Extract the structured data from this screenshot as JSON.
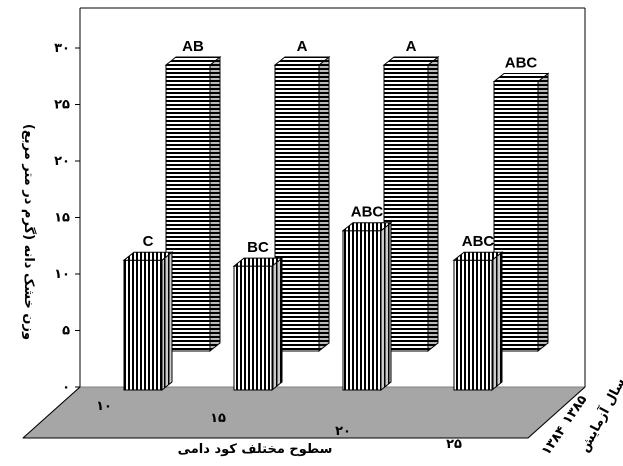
{
  "chart_data": {
    "type": "bar",
    "subtype": "3d-grouped-bar",
    "categories": [
      "۱۰",
      "۱۵",
      "۲۰",
      "۲۵"
    ],
    "series": [
      {
        "name": "۱۳۸۴",
        "values": [
          11,
          10.5,
          13.5,
          11
        ],
        "labels": [
          "C",
          "BC",
          "ABC",
          "ABC"
        ],
        "pattern": "vertical-stripes"
      },
      {
        "name": "۱۳۸۵",
        "values": [
          26,
          26,
          26,
          24.5
        ],
        "labels": [
          "AB",
          "A",
          "A",
          "ABC"
        ],
        "pattern": "horizontal-stripes"
      }
    ],
    "ylim": [
      0,
      30
    ],
    "yticks": [
      "۰",
      "۵",
      "۱۰",
      "۱۵",
      "۲۰",
      "۲۵",
      "۳۰"
    ],
    "xlabel": "سطوح مختلف کود دامی",
    "ylabel": "وزن خشک دانه (گرم در متر مربع)",
    "zlabel": "سال آزمایش",
    "grid": false,
    "floor_color": "#a6a6a6"
  }
}
